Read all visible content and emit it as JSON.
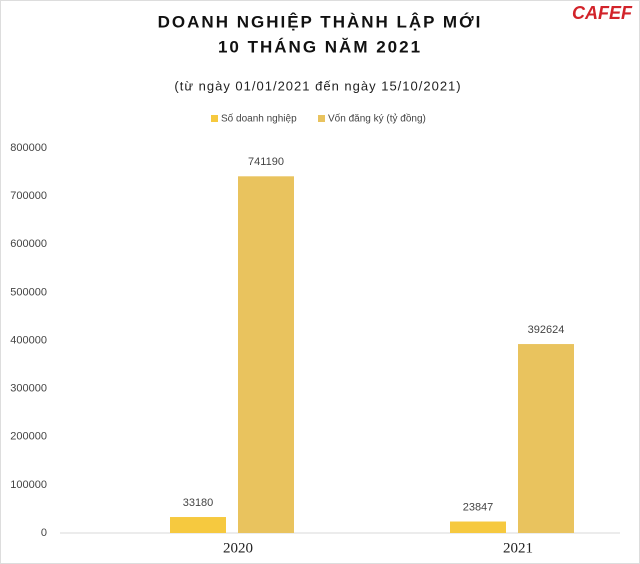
{
  "chart_data": {
    "type": "bar",
    "title": "DOANH NGHIỆP THÀNH LẬP MỚI",
    "title_line2": "10 THÁNG NĂM 2021",
    "subtitle": "(từ ngày 01/01/2021 đến ngày 15/10/2021)",
    "logo": "CAFEF",
    "categories": [
      "2020",
      "2021"
    ],
    "series": [
      {
        "name": "Số doanh nghiệp",
        "color": "#f6c93f",
        "values": [
          33180,
          23847
        ]
      },
      {
        "name": "Vốn đăng ký (tỷ đồng)",
        "color": "#e9c35e",
        "values": [
          741190,
          392624
        ]
      }
    ],
    "ylim": [
      0,
      800000
    ],
    "yticks": [
      0,
      100000,
      200000,
      300000,
      400000,
      500000,
      600000,
      700000,
      800000
    ],
    "legend": "top"
  }
}
